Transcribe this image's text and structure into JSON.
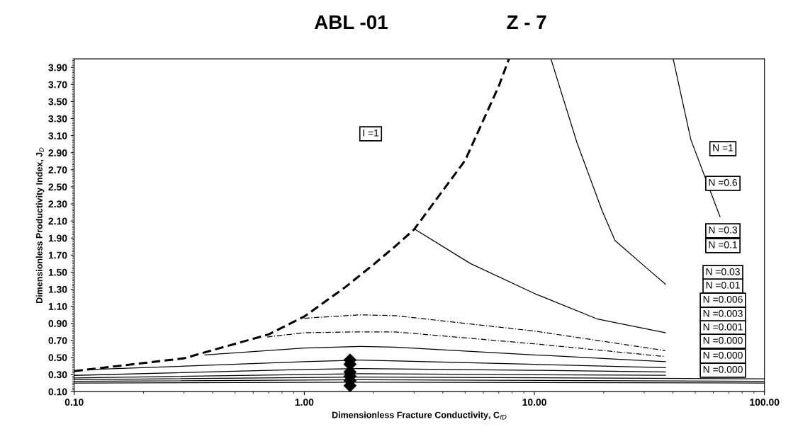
{
  "chart_data": {
    "type": "line",
    "title": "ABL -01",
    "subtitle": "Z - 7",
    "xlabel": "Dimensionless Fracture Conductivity, C$_{fD}$",
    "ylabel": "Dimensionless Productivity Index, J$_{D}$",
    "log": "x",
    "grid": false,
    "legend": false,
    "marker": "none",
    "xlim": [
      0.1,
      100
    ],
    "xticks": [
      {
        "value": 0.1,
        "label": "0.10"
      },
      {
        "value": 1,
        "label": "1.00"
      },
      {
        "value": 10,
        "label": "10.00"
      },
      {
        "value": 100,
        "label": "100.00"
      }
    ],
    "ylim": [
      0.1,
      4.0
    ],
    "yticks": [
      {
        "value": 0.1,
        "label": "0.10"
      },
      {
        "value": 0.3,
        "label": "0.30"
      },
      {
        "value": 0.5,
        "label": "0.50"
      },
      {
        "value": 0.7,
        "label": "0.70"
      },
      {
        "value": 0.9,
        "label": "0.90"
      },
      {
        "value": 1.1,
        "label": "1.10"
      },
      {
        "value": 1.3,
        "label": "1.30"
      },
      {
        "value": 1.5,
        "label": "1.50"
      },
      {
        "value": 1.7,
        "label": "1.70"
      },
      {
        "value": 1.9,
        "label": "1.90"
      },
      {
        "value": 2.1,
        "label": "2.10"
      },
      {
        "value": 2.3,
        "label": "2.30"
      },
      {
        "value": 2.5,
        "label": "2.50"
      },
      {
        "value": 2.7,
        "label": "2.70"
      },
      {
        "value": 2.9,
        "label": "2.90"
      },
      {
        "value": 3.1,
        "label": "3.10"
      },
      {
        "value": 3.3,
        "label": "3.30"
      },
      {
        "value": 3.5,
        "label": "3.50"
      },
      {
        "value": 3.7,
        "label": "3.70"
      },
      {
        "value": 3.9,
        "label": "3.90"
      }
    ],
    "series": [
      {
        "line_style": "dashed",
        "color": "#000000",
        "x": [
          0.1,
          0.3,
          0.5,
          0.7,
          1,
          1.5,
          2,
          2.5,
          3,
          5,
          7,
          7.75
        ],
        "values": [
          0.34,
          0.49,
          0.66,
          0.77,
          0.98,
          1.32,
          1.59,
          1.81,
          2.0,
          2.81,
          3.68,
          4.0
        ]
      },
      {
        "line_style": "solid",
        "color": "#000000",
        "x": [
          40.1,
          47.9,
          64.1
        ],
        "values": [
          4.0,
          3.05,
          2.15
        ]
      },
      {
        "line_style": "solid",
        "color": "#000000",
        "x": [
          11.8,
          15.3,
          19.7,
          22.4,
          31.0,
          37.1
        ],
        "values": [
          4.0,
          3.02,
          2.22,
          1.87,
          1.54,
          1.36
        ]
      },
      {
        "line_style": "solid",
        "color": "#000000",
        "x": [
          3.04,
          5.28,
          10,
          18.8,
          37.1
        ],
        "values": [
          2.0,
          1.6,
          1.25,
          0.95,
          0.79
        ]
      },
      {
        "line_style": "dotted",
        "color": "#000000",
        "x": [
          1.0,
          1.75,
          2.48,
          10,
          37.1
        ],
        "values": [
          0.96,
          1.0,
          0.99,
          0.81,
          0.58
        ]
      },
      {
        "line_style": "dotted",
        "color": "#000000",
        "x": [
          0.69,
          1,
          1.75,
          2.48,
          10,
          37.1
        ],
        "values": [
          0.74,
          0.79,
          0.8,
          0.8,
          0.66,
          0.51
        ]
      },
      {
        "line_style": "solid",
        "color": "#000000",
        "x": [
          0.37,
          1,
          1.75,
          2.48,
          10,
          37.1
        ],
        "values": [
          0.53,
          0.61,
          0.63,
          0.62,
          0.53,
          0.45
        ]
      },
      {
        "line_style": "solid",
        "color": "#000000",
        "x": [
          0.12,
          1,
          1.75,
          10,
          37.1
        ],
        "values": [
          0.36,
          0.45,
          0.47,
          0.42,
          0.38
        ]
      },
      {
        "line_style": "solid",
        "color": "#000000",
        "x": [
          0.1,
          1,
          1.75,
          10,
          37.1
        ],
        "values": [
          0.29,
          0.36,
          0.37,
          0.35,
          0.33
        ]
      },
      {
        "line_style": "solid",
        "color": "#000000",
        "x": [
          0.1,
          1.75,
          37.1
        ],
        "values": [
          0.26,
          0.31,
          0.29
        ]
      },
      {
        "line_style": "solid",
        "color": "#000000",
        "x": [
          0.1,
          1.75,
          100
        ],
        "values": [
          0.24,
          0.27,
          0.25
        ]
      },
      {
        "line_style": "solid",
        "color": "#000000",
        "x": [
          0.1,
          1.75,
          100
        ],
        "values": [
          0.22,
          0.24,
          0.22
        ]
      },
      {
        "line_style": "solid",
        "color": "#000000",
        "x": [
          0.1,
          1.75,
          100
        ],
        "values": [
          0.2,
          0.21,
          0.2
        ]
      },
      {
        "type": "scatter",
        "marker": "diamond",
        "color": "#000000",
        "x": [
          1.58,
          1.58,
          1.58,
          1.58,
          1.58,
          1.58
        ],
        "values": [
          0.47,
          0.42,
          0.33,
          0.28,
          0.23,
          0.17
        ]
      }
    ],
    "annotations": [
      "I =1",
      "N =1",
      "N =0.6",
      "N =0.3",
      "N =0.1",
      "N =0.03",
      "N =0.01",
      "N =0.006",
      "N =0.003",
      "N =0.001",
      "N =0.000",
      "N =0.000",
      "N =0.000"
    ]
  }
}
